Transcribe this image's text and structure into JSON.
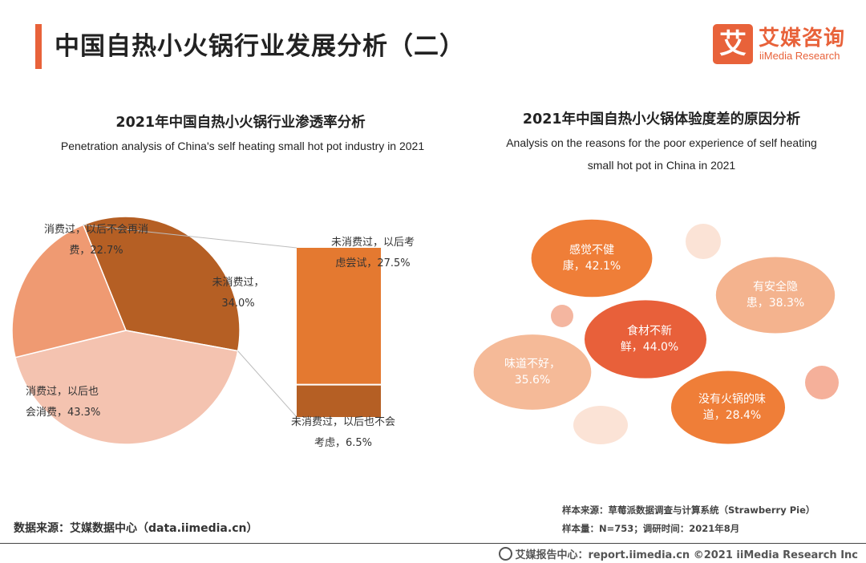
{
  "header": {
    "title": "中国自热小火锅行业发展分析（二）",
    "logo_mark": "艾",
    "logo_cn": "艾媒咨询",
    "logo_en": "iiMedia Research"
  },
  "chart_left": {
    "title_cn": "2021年中国自热小火锅行业渗透率分析",
    "title_en": "Penetration analysis of China's self heating small hot pot industry in 2021"
  },
  "chart_right": {
    "title_cn": "2021年中国自热小火锅体验度差的原因分析",
    "title_en_line1": "Analysis on the reasons for the poor experience of self heating",
    "title_en_line2": "small hot pot in China in 2021"
  },
  "chart_data": [
    {
      "type": "pie",
      "title": "2021年中国自热小火锅行业渗透率分析",
      "slices": [
        {
          "label_line1": "未消费过，",
          "label_line2": "34.0%",
          "value": 34.0,
          "color": "#b55f24"
        },
        {
          "label_line1": "消费过，以后也",
          "label_line2": "会消费，43.3%",
          "value": 43.3,
          "color": "#f4c3b0"
        },
        {
          "label_line1": "消费过，以后不会再消",
          "label_line2": "费，22.7%",
          "value": 22.7,
          "color": "#ef9a72"
        }
      ]
    },
    {
      "type": "bar",
      "stacked": true,
      "subtitle": "breakdown of 未消费过 34.0%",
      "segments": [
        {
          "label_line1": "未消费过，以后考",
          "label_line2": "虑尝试，27.5%",
          "value": 27.5,
          "color": "#e47930"
        },
        {
          "label_line1": "未消费过，以后也不会",
          "label_line2": "考虑，6.5%",
          "value": 6.5,
          "color": "#b55f24"
        }
      ]
    },
    {
      "type": "bubble",
      "title": "2021年中国自热小火锅体验度差的原因分析",
      "items": [
        {
          "label_line1": "食材不新",
          "label_line2": "鲜，44.0%",
          "value": 44.0,
          "color": "#e8603a"
        },
        {
          "label_line1": "感觉不健",
          "label_line2": "康，42.1%",
          "value": 42.1,
          "color": "#ef7e38"
        },
        {
          "label_line1": "有安全隐",
          "label_line2": "患，38.3%",
          "value": 38.3,
          "color": "#f4b38e"
        },
        {
          "label_line1": "味道不好，",
          "label_line2": "35.6%",
          "value": 35.6,
          "color": "#f5ba98"
        },
        {
          "label_line1": "没有火锅的味",
          "label_line2": "道，28.4%",
          "value": 28.4,
          "color": "#ef7e38"
        }
      ]
    }
  ],
  "source": {
    "left": "数据来源：艾媒数据中心（data.iimedia.cn）",
    "sample_source": "样本来源：草莓派数据调查与计算系统（Strawberry Pie）",
    "sample_size": "样本量：N=753；调研时间：2021年8月"
  },
  "footer": {
    "text": "艾媒报告中心：report.iimedia.cn   ©2021  iiMedia Research  Inc"
  }
}
